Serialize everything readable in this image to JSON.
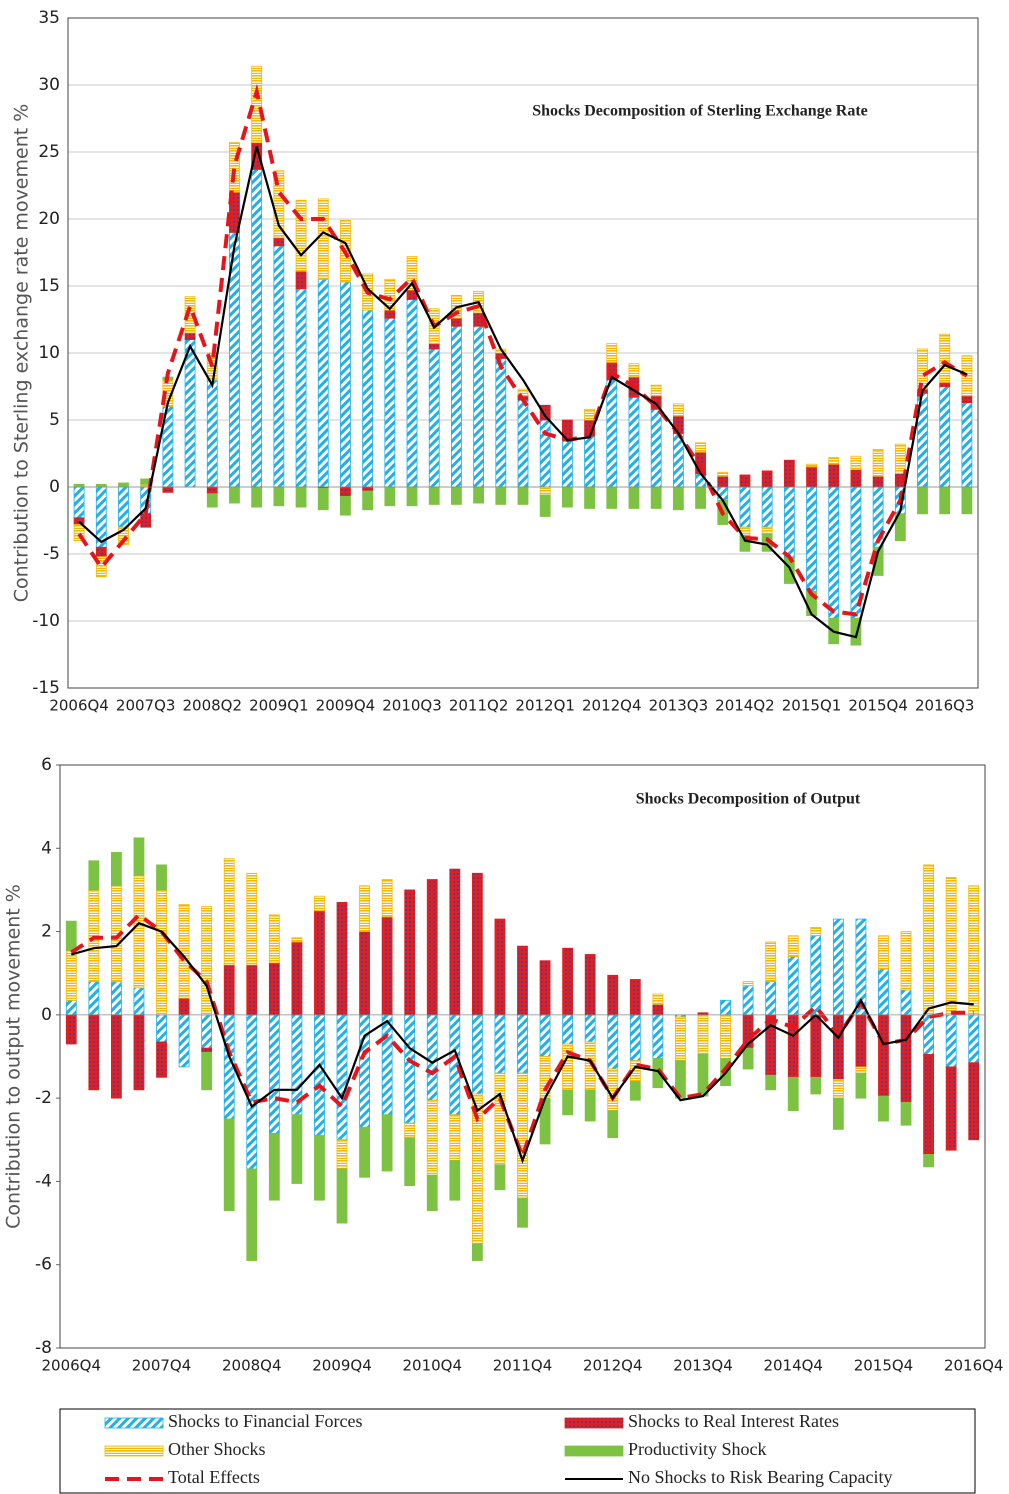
{
  "chart_data": [
    {
      "type": "bar",
      "title": "Shocks Decomposition of Sterling Exchange Rate",
      "y_label": "Contribution to Sterling exchange rate movement %",
      "categories": [
        "2006Q4",
        null,
        null,
        "2007Q3",
        null,
        null,
        "2008Q2",
        null,
        null,
        "2009Q1",
        null,
        null,
        "2009Q4",
        null,
        null,
        "2010Q3",
        null,
        null,
        "2011Q2",
        null,
        null,
        "2012Q1",
        null,
        null,
        "2012Q4",
        null,
        null,
        "2013Q3",
        null,
        null,
        "2014Q2",
        null,
        null,
        "2015Q1",
        null,
        null,
        "2015Q4",
        null,
        null,
        "2016Q3",
        null
      ],
      "ylim": [
        -15,
        35
      ],
      "yticks": [
        -15,
        -10,
        -5,
        0,
        5,
        10,
        15,
        20,
        25,
        30,
        35
      ],
      "grid": true,
      "series": [
        {
          "kind": "bar",
          "pattern": "stripes",
          "color": "#1fb0e8",
          "values": [
            -2.3,
            -4.5,
            -3.0,
            -2.0,
            6.0,
            11.0,
            8.0,
            19.0,
            23.7,
            18.0,
            14.8,
            15.5,
            15.3,
            13.2,
            12.6,
            14.0,
            10.3,
            12.0,
            12.0,
            9.6,
            6.5,
            5.0,
            3.5,
            3.8,
            8.0,
            6.7,
            5.8,
            4.0,
            1.0,
            -1.0,
            -3.0,
            -3.0,
            -5.3,
            -7.8,
            -9.8,
            -9.8,
            -4.5,
            -2.0,
            7.0,
            7.5,
            6.3
          ]
        },
        {
          "kind": "bar",
          "pattern": "dots",
          "color": "#e02020",
          "values": [
            -0.5,
            -0.7,
            0,
            -1.0,
            -0.4,
            0.5,
            -0.5,
            3.0,
            2.0,
            0.6,
            1.3,
            -0.1,
            -0.7,
            -0.3,
            0.6,
            0.7,
            0.4,
            0.6,
            1.0,
            0.4,
            0.3,
            1.1,
            1.5,
            1.2,
            1.3,
            1.5,
            1.0,
            1.3,
            1.6,
            0.8,
            0.9,
            1.2,
            2.0,
            1.5,
            1.7,
            1.3,
            0.8,
            1.0,
            0.3,
            0.3,
            0.5
          ]
        },
        {
          "kind": "bar",
          "pattern": "hlines",
          "color": "#f5b800",
          "values": [
            -1.2,
            -1.5,
            -1.3,
            0.2,
            2.0,
            2.7,
            2.0,
            3.7,
            5.7,
            5.0,
            5.3,
            6.0,
            4.6,
            2.7,
            2.3,
            2.5,
            2.6,
            1.7,
            1.6,
            0.3,
            0.5,
            -0.6,
            0,
            0.8,
            1.4,
            1.0,
            0.8,
            0.9,
            0.7,
            0.3,
            -0.6,
            -0.5,
            0,
            0.2,
            0.5,
            1.0,
            2.0,
            2.2,
            3.0,
            3.6,
            3.0
          ]
        },
        {
          "kind": "bar",
          "pattern": "solid",
          "color": "#7dc242",
          "values": [
            0.2,
            0.2,
            0.3,
            0.4,
            0.2,
            0,
            -1.0,
            -1.2,
            -1.5,
            -1.4,
            -1.5,
            -1.6,
            -1.4,
            -1.4,
            -1.4,
            -1.4,
            -1.3,
            -1.3,
            -1.2,
            -1.3,
            -1.3,
            -1.6,
            -1.5,
            -1.6,
            -1.6,
            -1.6,
            -1.6,
            -1.7,
            -1.6,
            -1.8,
            -1.2,
            -1.3,
            -1.9,
            -1.8,
            -1.9,
            -2.0,
            -2.1,
            -2.0,
            -2.0,
            -2.0,
            -2.0
          ]
        },
        {
          "kind": "line",
          "dashed": true,
          "color": "#e8141c",
          "values": [
            -3.5,
            -6.0,
            -4.0,
            -2.0,
            8.5,
            13.5,
            9.0,
            24.0,
            29.5,
            22.0,
            20.0,
            20.0,
            17.5,
            14.5,
            14.0,
            15.6,
            12.0,
            13.0,
            13.5,
            9.0,
            6.5,
            4.0,
            3.5,
            3.8,
            8.5,
            7.5,
            6.0,
            4.0,
            1.5,
            -2.0,
            -3.8,
            -3.9,
            -5.2,
            -8.0,
            -9.3,
            -9.5,
            -4.0,
            -1.0,
            8.3,
            9.3,
            8.3
          ]
        },
        {
          "kind": "line",
          "dashed": false,
          "color": "#000000",
          "values": [
            -2.6,
            -4.1,
            -3.2,
            -1.6,
            6.3,
            10.5,
            7.6,
            18.0,
            25.4,
            19.5,
            17.3,
            19.0,
            18.2,
            14.8,
            13.3,
            15.2,
            11.9,
            13.4,
            13.8,
            10.3,
            8.0,
            5.3,
            3.5,
            3.7,
            8.2,
            7.2,
            6.2,
            4.0,
            1.0,
            -1.0,
            -4.0,
            -4.3,
            -6.0,
            -9.5,
            -10.8,
            -11.2,
            -4.8,
            -1.8,
            7.2,
            9.1,
            8.4
          ]
        }
      ]
    },
    {
      "type": "bar",
      "title": "Shocks Decomposition of Output",
      "y_label": "Contribution to output movement %",
      "categories": [
        "2006Q4",
        null,
        null,
        null,
        "2007Q4",
        null,
        null,
        null,
        "2008Q4",
        null,
        null,
        null,
        "2009Q4",
        null,
        null,
        null,
        "2010Q4",
        null,
        null,
        null,
        "2011Q4",
        null,
        null,
        null,
        "2012Q4",
        null,
        null,
        null,
        "2013Q4",
        null,
        null,
        null,
        "2014Q4",
        null,
        null,
        null,
        "2015Q4",
        null,
        null,
        null,
        "2016Q4"
      ],
      "ylim": [
        -8,
        6
      ],
      "yticks": [
        -8,
        -6,
        -4,
        -2,
        0,
        2,
        4,
        6
      ],
      "grid": false,
      "series": [
        {
          "name": "Shocks to Financial Forces",
          "kind": "bar",
          "pattern": "stripes",
          "color": "#1fb0e8",
          "values": [
            0.35,
            0.8,
            0.8,
            0.65,
            -0.65,
            -1.25,
            -0.8,
            -2.5,
            -3.7,
            -2.85,
            -2.4,
            -2.9,
            -3.0,
            -2.7,
            -2.4,
            -2.6,
            -2.05,
            -2.4,
            -1.9,
            -1.4,
            -1.4,
            -1.0,
            -0.7,
            -0.65,
            -1.3,
            -1.1,
            -1.05,
            -0.05,
            0,
            0.35,
            0.7,
            0.8,
            1.4,
            1.9,
            2.3,
            2.3,
            1.1,
            0.6,
            -0.95,
            -1.25,
            -1.15
          ]
        },
        {
          "name": "Shocks to Real Interest Rates",
          "kind": "bar",
          "pattern": "dots",
          "color": "#e02020",
          "values": [
            -0.7,
            -1.8,
            -2.0,
            -1.8,
            -0.85,
            0.4,
            -0.1,
            1.2,
            1.2,
            1.25,
            1.75,
            2.5,
            2.7,
            2.0,
            2.35,
            3.0,
            3.25,
            3.5,
            3.4,
            2.3,
            1.65,
            1.3,
            1.6,
            1.45,
            0.95,
            0.85,
            0.25,
            0,
            0.05,
            0,
            -0.8,
            -1.45,
            -1.5,
            -1.5,
            -1.55,
            -1.25,
            -1.95,
            -2.1,
            -2.4,
            -2.0,
            -1.85
          ]
        },
        {
          "name": "Other Shocks",
          "kind": "bar",
          "pattern": "hlines",
          "color": "#f5b800",
          "values": [
            1.2,
            2.2,
            2.3,
            2.7,
            3.0,
            2.25,
            2.6,
            2.55,
            2.2,
            1.15,
            0.1,
            0.35,
            -0.7,
            1.1,
            0.9,
            -0.35,
            -1.8,
            -1.1,
            -3.6,
            -2.2,
            -3.0,
            -1.0,
            -1.1,
            -1.15,
            -1.0,
            -0.5,
            0.25,
            -1.05,
            -0.95,
            -1.05,
            0.1,
            0.95,
            0.5,
            0.2,
            -0.45,
            -0.15,
            0.8,
            1.4,
            3.6,
            3.3,
            3.1
          ]
        },
        {
          "name": "Productivity Shock",
          "kind": "bar",
          "pattern": "solid",
          "color": "#7dc242",
          "values": [
            0.7,
            0.7,
            0.8,
            0.9,
            0.6,
            0,
            -0.9,
            -2.2,
            -2.2,
            -1.6,
            -1.65,
            -1.55,
            -1.3,
            -1.2,
            -1.35,
            -1.15,
            -0.85,
            -0.95,
            -0.4,
            -0.6,
            -0.7,
            -1.1,
            -0.6,
            -0.75,
            -0.65,
            -0.45,
            -0.7,
            -0.9,
            -1.0,
            -0.65,
            -0.5,
            -0.35,
            -0.8,
            -0.4,
            -0.75,
            -0.6,
            -0.6,
            -0.55,
            -0.3,
            0,
            0
          ]
        },
        {
          "name": "Total Effects",
          "kind": "line",
          "dashed": true,
          "color": "#e8141c",
          "values": [
            1.5,
            1.85,
            1.85,
            2.4,
            2.0,
            1.3,
            0.8,
            -0.9,
            -2.1,
            -2.0,
            -2.1,
            -1.7,
            -2.2,
            -0.9,
            -0.5,
            -1.1,
            -1.4,
            -1.0,
            -2.5,
            -2.0,
            -3.4,
            -1.8,
            -0.9,
            -1.1,
            -2.0,
            -1.2,
            -1.3,
            -2.0,
            -1.9,
            -1.3,
            -0.6,
            -0.1,
            -0.3,
            0.2,
            -0.5,
            0.3,
            -0.7,
            -0.6,
            -0.05,
            0.05,
            0.05
          ]
        },
        {
          "name": "No Shocks to Risk Bearing Capacity",
          "kind": "line",
          "dashed": false,
          "color": "#000000",
          "values": [
            1.45,
            1.6,
            1.65,
            2.2,
            2.0,
            1.4,
            0.7,
            -1.0,
            -2.2,
            -1.8,
            -1.8,
            -1.2,
            -2.0,
            -0.5,
            -0.15,
            -0.8,
            -1.15,
            -0.85,
            -2.3,
            -1.9,
            -3.5,
            -2.0,
            -1.0,
            -1.1,
            -2.0,
            -1.25,
            -1.35,
            -2.05,
            -1.95,
            -1.4,
            -0.7,
            -0.25,
            -0.5,
            0.0,
            -0.55,
            0.35,
            -0.7,
            -0.6,
            0.15,
            0.3,
            0.25
          ]
        }
      ]
    }
  ]
}
